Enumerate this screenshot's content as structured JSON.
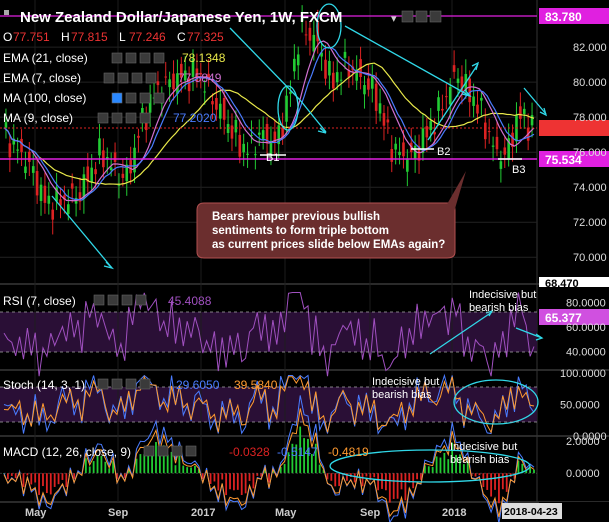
{
  "header": {
    "title": "New Zealand Dollar/Japanese Yen, 1W, FXCM",
    "ohlc": [
      {
        "k": "O",
        "v": "77.751"
      },
      {
        "k": "H",
        "v": "77.815"
      },
      {
        "k": "L",
        "v": "77.246"
      },
      {
        "k": "C",
        "v": "77.325"
      }
    ]
  },
  "indicators": {
    "ema21": {
      "label": "EMA (21, close)",
      "value": "78.1348",
      "color": "#e8e84a"
    },
    "ema7": {
      "label": "EMA (7, close)",
      "value": "77.5849",
      "color": "#d070d0"
    },
    "ma100": {
      "label": "MA (100, close)",
      "value": "",
      "color": "#4aa8ff"
    },
    "ma9": {
      "label": "MA (9, close)",
      "value": "77.2020",
      "color": "#4a7cff"
    }
  },
  "price_tags": {
    "high": "83.780",
    "support": "75.534",
    "rsi": "65.377",
    "bottom": "68.470"
  },
  "rsi_panel": {
    "label": "RSI (7, close)",
    "value": "45.4088"
  },
  "stoch_panel": {
    "label": "Stoch (14, 3, 1)",
    "k": "29.6050",
    "d": "39.5840"
  },
  "macd_panel": {
    "label": "MACD (12, 26, close, 9)",
    "v1": "-0.0328",
    "v2": "-0.5147",
    "v3": "-0.4819"
  },
  "annotations": {
    "main_callout": "Bears hamper previous bullish sentiments to form triple bottom as current prices slide below EMAs again?",
    "b1": "B1",
    "b2": "B2",
    "b3": "B3",
    "rsi_note": "Indecisive but bearish bias",
    "stoch_note": "Indecisive but bearish bias",
    "macd_note": "Indecisive but bearish bias"
  },
  "x_axis": {
    "labels": [
      "May",
      "Sep",
      "2017",
      "May",
      "Sep",
      "2018"
    ],
    "last_date": "2018-04-23"
  },
  "colors": {
    "bull": "#22cc33",
    "bear": "#dd2222",
    "magenta": "#e020e0",
    "cyan": "#30d8e8",
    "callout": "#6b2e2e"
  },
  "chart_data": [
    {
      "type": "line",
      "title": "New Zealand Dollar/Japanese Yen, 1W, FXCM",
      "y_ticks": [
        70,
        72,
        74,
        76,
        78,
        80,
        82
      ],
      "ylim": [
        68.47,
        83.78
      ],
      "support_level": 75.534,
      "resistance_level": 83.78,
      "x": [
        "May",
        "Sep",
        "2017",
        "May",
        "Sep",
        "2018"
      ],
      "series": [
        {
          "name": "EMA (21, close)",
          "last": 78.1348
        },
        {
          "name": "EMA (7, close)",
          "last": 77.5849
        },
        {
          "name": "MA (9, close)",
          "last": 77.202
        }
      ],
      "last_close": 77.325
    },
    {
      "type": "line",
      "title": "RSI (7, close)",
      "y_ticks": [
        40.0,
        60.0,
        80.0
      ],
      "ylim": [
        25,
        90
      ],
      "last": 45.4088
    },
    {
      "type": "line",
      "title": "Stoch (14, 3, 1)",
      "y_ticks": [
        0.0,
        50.0,
        100.0
      ],
      "ylim": [
        0,
        100
      ],
      "series": [
        {
          "name": "%K",
          "last": 29.605
        },
        {
          "name": "%D",
          "last": 39.584
        }
      ]
    },
    {
      "type": "bar",
      "title": "MACD (12, 26, close, 9)",
      "y_ticks": [
        0.0,
        2.0
      ],
      "ylim": [
        -1.8,
        2.2
      ],
      "series": [
        {
          "name": "histogram",
          "last": -0.0328
        },
        {
          "name": "macd",
          "last": -0.5147
        },
        {
          "name": "signal",
          "last": -0.4819
        }
      ]
    }
  ]
}
